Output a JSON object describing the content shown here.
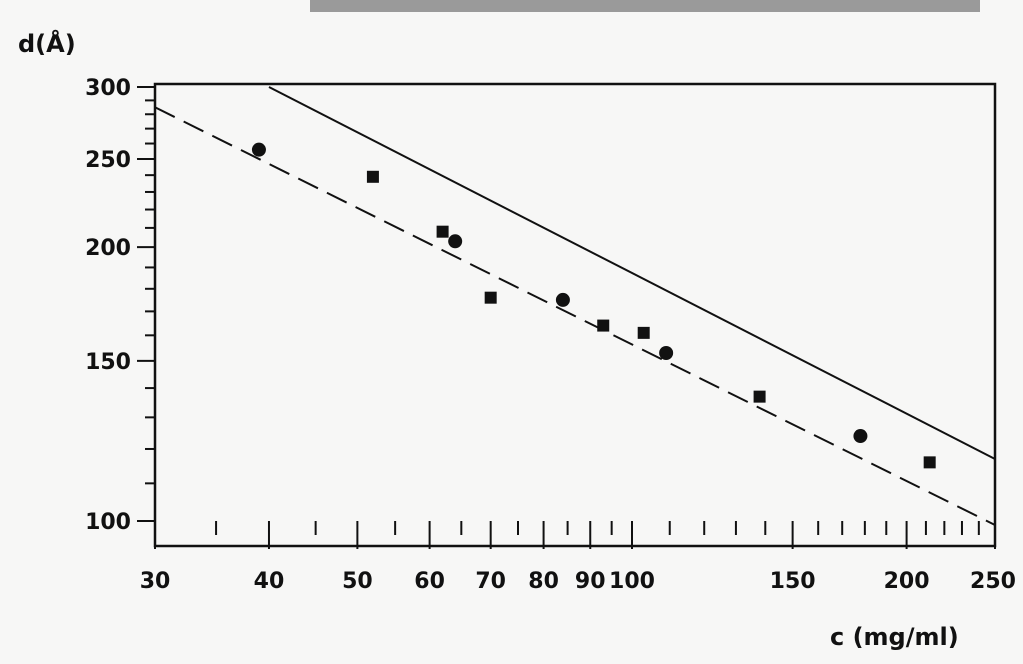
{
  "chart_data": {
    "type": "scatter",
    "title": "",
    "xlabel": "c (mg/ml)",
    "ylabel": "d(Å)",
    "x_scale": "log",
    "y_scale": "log",
    "xlim": [
      30,
      250
    ],
    "ylim": [
      100,
      300
    ],
    "x_tick_labels": [
      "30",
      "40",
      "50",
      "60",
      "70",
      "80",
      "90",
      "100",
      "150",
      "200",
      "250"
    ],
    "y_tick_labels": [
      "300",
      "250",
      "200",
      "150",
      "100"
    ],
    "grid": false,
    "series": [
      {
        "marker": "circle",
        "points": [
          {
            "x": 39,
            "y": 256
          },
          {
            "x": 64,
            "y": 203
          },
          {
            "x": 84,
            "y": 175
          },
          {
            "x": 109,
            "y": 153
          },
          {
            "x": 178,
            "y": 124
          }
        ]
      },
      {
        "marker": "square",
        "points": [
          {
            "x": 52,
            "y": 239
          },
          {
            "x": 62,
            "y": 208
          },
          {
            "x": 70,
            "y": 176
          },
          {
            "x": 93,
            "y": 164
          },
          {
            "x": 103,
            "y": 161
          },
          {
            "x": 138,
            "y": 137
          },
          {
            "x": 212,
            "y": 116
          }
        ]
      }
    ],
    "lines": [
      {
        "style": "solid",
        "from": {
          "x": 40,
          "y": 300
        },
        "to": {
          "x": 250,
          "y": 117
        }
      },
      {
        "style": "dashed",
        "from": {
          "x": 30,
          "y": 285
        },
        "to": {
          "x": 250,
          "y": 99
        }
      }
    ]
  }
}
